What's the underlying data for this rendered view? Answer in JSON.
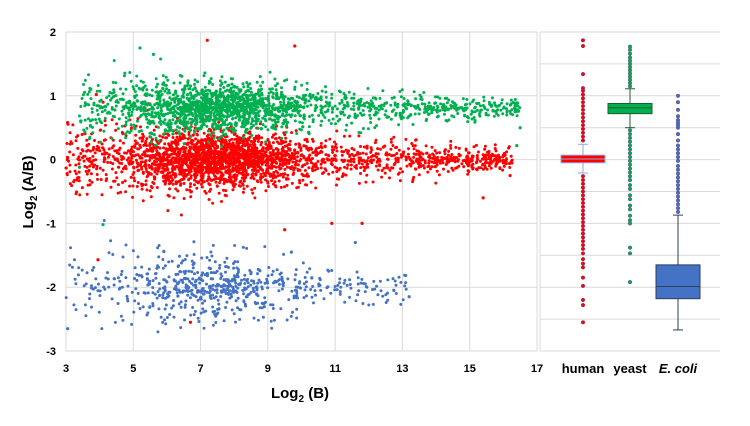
{
  "chart_data": [
    {
      "type": "scatter",
      "xlabel": "Log2 (B)",
      "xlabel_main": "Log",
      "xlabel_sub": "2",
      "xlabel_rest": " (B)",
      "ylabel_main": "Log",
      "ylabel_sub": "2",
      "ylabel_rest": " (A/B)",
      "xlim": [
        3,
        17
      ],
      "ylim": [
        -3,
        2
      ],
      "xticks": [
        "3",
        "5",
        "7",
        "9",
        "11",
        "13",
        "15",
        "17"
      ],
      "yticks": [
        "2",
        "1",
        "0",
        "-1",
        "-2",
        "-3"
      ],
      "grid": true,
      "series": [
        {
          "name": "human",
          "color": "#ff0000",
          "count": 2600,
          "x_range": [
            3.0,
            16.3
          ],
          "x_mode": 7.5,
          "y_mean": 0.0,
          "y_sd_low_x": 0.28,
          "y_sd_high_x": 0.09,
          "outliers": [
            [
              7.2,
              1.87
            ],
            [
              9.8,
              1.78
            ],
            [
              3.05,
              0.58
            ],
            [
              3.9,
              1.02
            ],
            [
              3.95,
              -1.57
            ],
            [
              4.1,
              0.9
            ],
            [
              9.5,
              -1.1
            ],
            [
              11.8,
              -1.0
            ],
            [
              10.9,
              -1.0
            ],
            [
              6.7,
              -2.55
            ],
            [
              15.4,
              -0.6
            ],
            [
              16.2,
              -0.25
            ]
          ]
        },
        {
          "name": "yeast",
          "color": "#00b050",
          "count": 1900,
          "x_range": [
            3.4,
            16.5
          ],
          "x_mode": 7.5,
          "y_mean": 0.8,
          "y_sd_low_x": 0.25,
          "y_sd_high_x": 0.07,
          "outliers": [
            [
              5.2,
              1.75
            ],
            [
              5.6,
              1.65
            ],
            [
              3.4,
              -0.12
            ],
            [
              4.1,
              -1.02
            ],
            [
              16.5,
              0.5
            ],
            [
              16.4,
              0.22
            ]
          ]
        },
        {
          "name": "E. coli",
          "color": "#4472c4",
          "count": 650,
          "x_range": [
            3.0,
            13.2
          ],
          "x_mode": 7.2,
          "y_mean": -2.0,
          "y_sd_low_x": 0.35,
          "y_sd_high_x": 0.15,
          "outliers": [
            [
              3.05,
              -2.65
            ],
            [
              13.2,
              -2.15
            ],
            [
              11.6,
              -1.3
            ],
            [
              9.7,
              -1.45
            ]
          ]
        }
      ]
    },
    {
      "type": "box",
      "categories": [
        "human",
        "yeast",
        "E. coli"
      ],
      "ylim": [
        -3,
        2
      ],
      "boxes": [
        {
          "name": "human",
          "color": "#ff0000",
          "edge": "#8eaadb",
          "q1": -0.05,
          "median": 0.01,
          "q3": 0.07,
          "whisker_low": -0.21,
          "whisker_high": 0.24,
          "outliers": [
            1.87,
            1.78,
            1.34,
            1.12,
            1.08,
            1.02,
            0.96,
            0.9,
            0.84,
            0.78,
            0.72,
            0.66,
            0.6,
            0.54,
            0.48,
            0.42,
            0.36,
            0.3,
            -0.26,
            -0.32,
            -0.38,
            -0.44,
            -0.5,
            -0.56,
            -0.62,
            -0.68,
            -0.74,
            -0.8,
            -0.86,
            -0.92,
            -0.98,
            -1.04,
            -1.1,
            -1.16,
            -1.22,
            -1.28,
            -1.34,
            -1.4,
            -1.47,
            -1.56,
            -1.63,
            -1.69,
            -1.85,
            -1.98,
            -2.2,
            -2.28,
            -2.55
          ]
        },
        {
          "name": "yeast",
          "color": "#00b050",
          "edge": "#1f5c2e",
          "q1": 0.72,
          "median": 0.81,
          "q3": 0.88,
          "whisker_low": 0.5,
          "whisker_high": 1.11,
          "outliers": [
            1.77,
            1.72,
            1.66,
            1.6,
            1.55,
            1.5,
            1.45,
            1.4,
            1.35,
            1.3,
            1.25,
            1.2,
            1.15,
            0.46,
            0.4,
            0.34,
            0.28,
            0.22,
            0.16,
            0.1,
            0.04,
            -0.02,
            -0.08,
            -0.14,
            -0.2,
            -0.26,
            -0.32,
            -0.4,
            -0.46,
            -0.56,
            -0.62,
            -0.72,
            -0.78,
            -0.88,
            -0.95,
            -1.0,
            -1.38,
            -1.47,
            -1.92
          ]
        },
        {
          "name": "E. coli",
          "color": "#4472c4",
          "edge": "#2f3f5f",
          "q1": -2.18,
          "median": -1.99,
          "q3": -1.65,
          "whisker_low": -2.67,
          "whisker_high": -0.87,
          "outliers": [
            1.0,
            0.9,
            0.78,
            0.68,
            0.62,
            0.58,
            0.54,
            0.5,
            0.4,
            0.3,
            0.22,
            0.16,
            0.1,
            0.04,
            -0.02,
            -0.1,
            -0.16,
            -0.22,
            -0.28,
            -0.34,
            -0.4,
            -0.46,
            -0.52,
            -0.58,
            -0.64,
            -0.7,
            -0.76,
            -0.82
          ]
        }
      ]
    }
  ]
}
